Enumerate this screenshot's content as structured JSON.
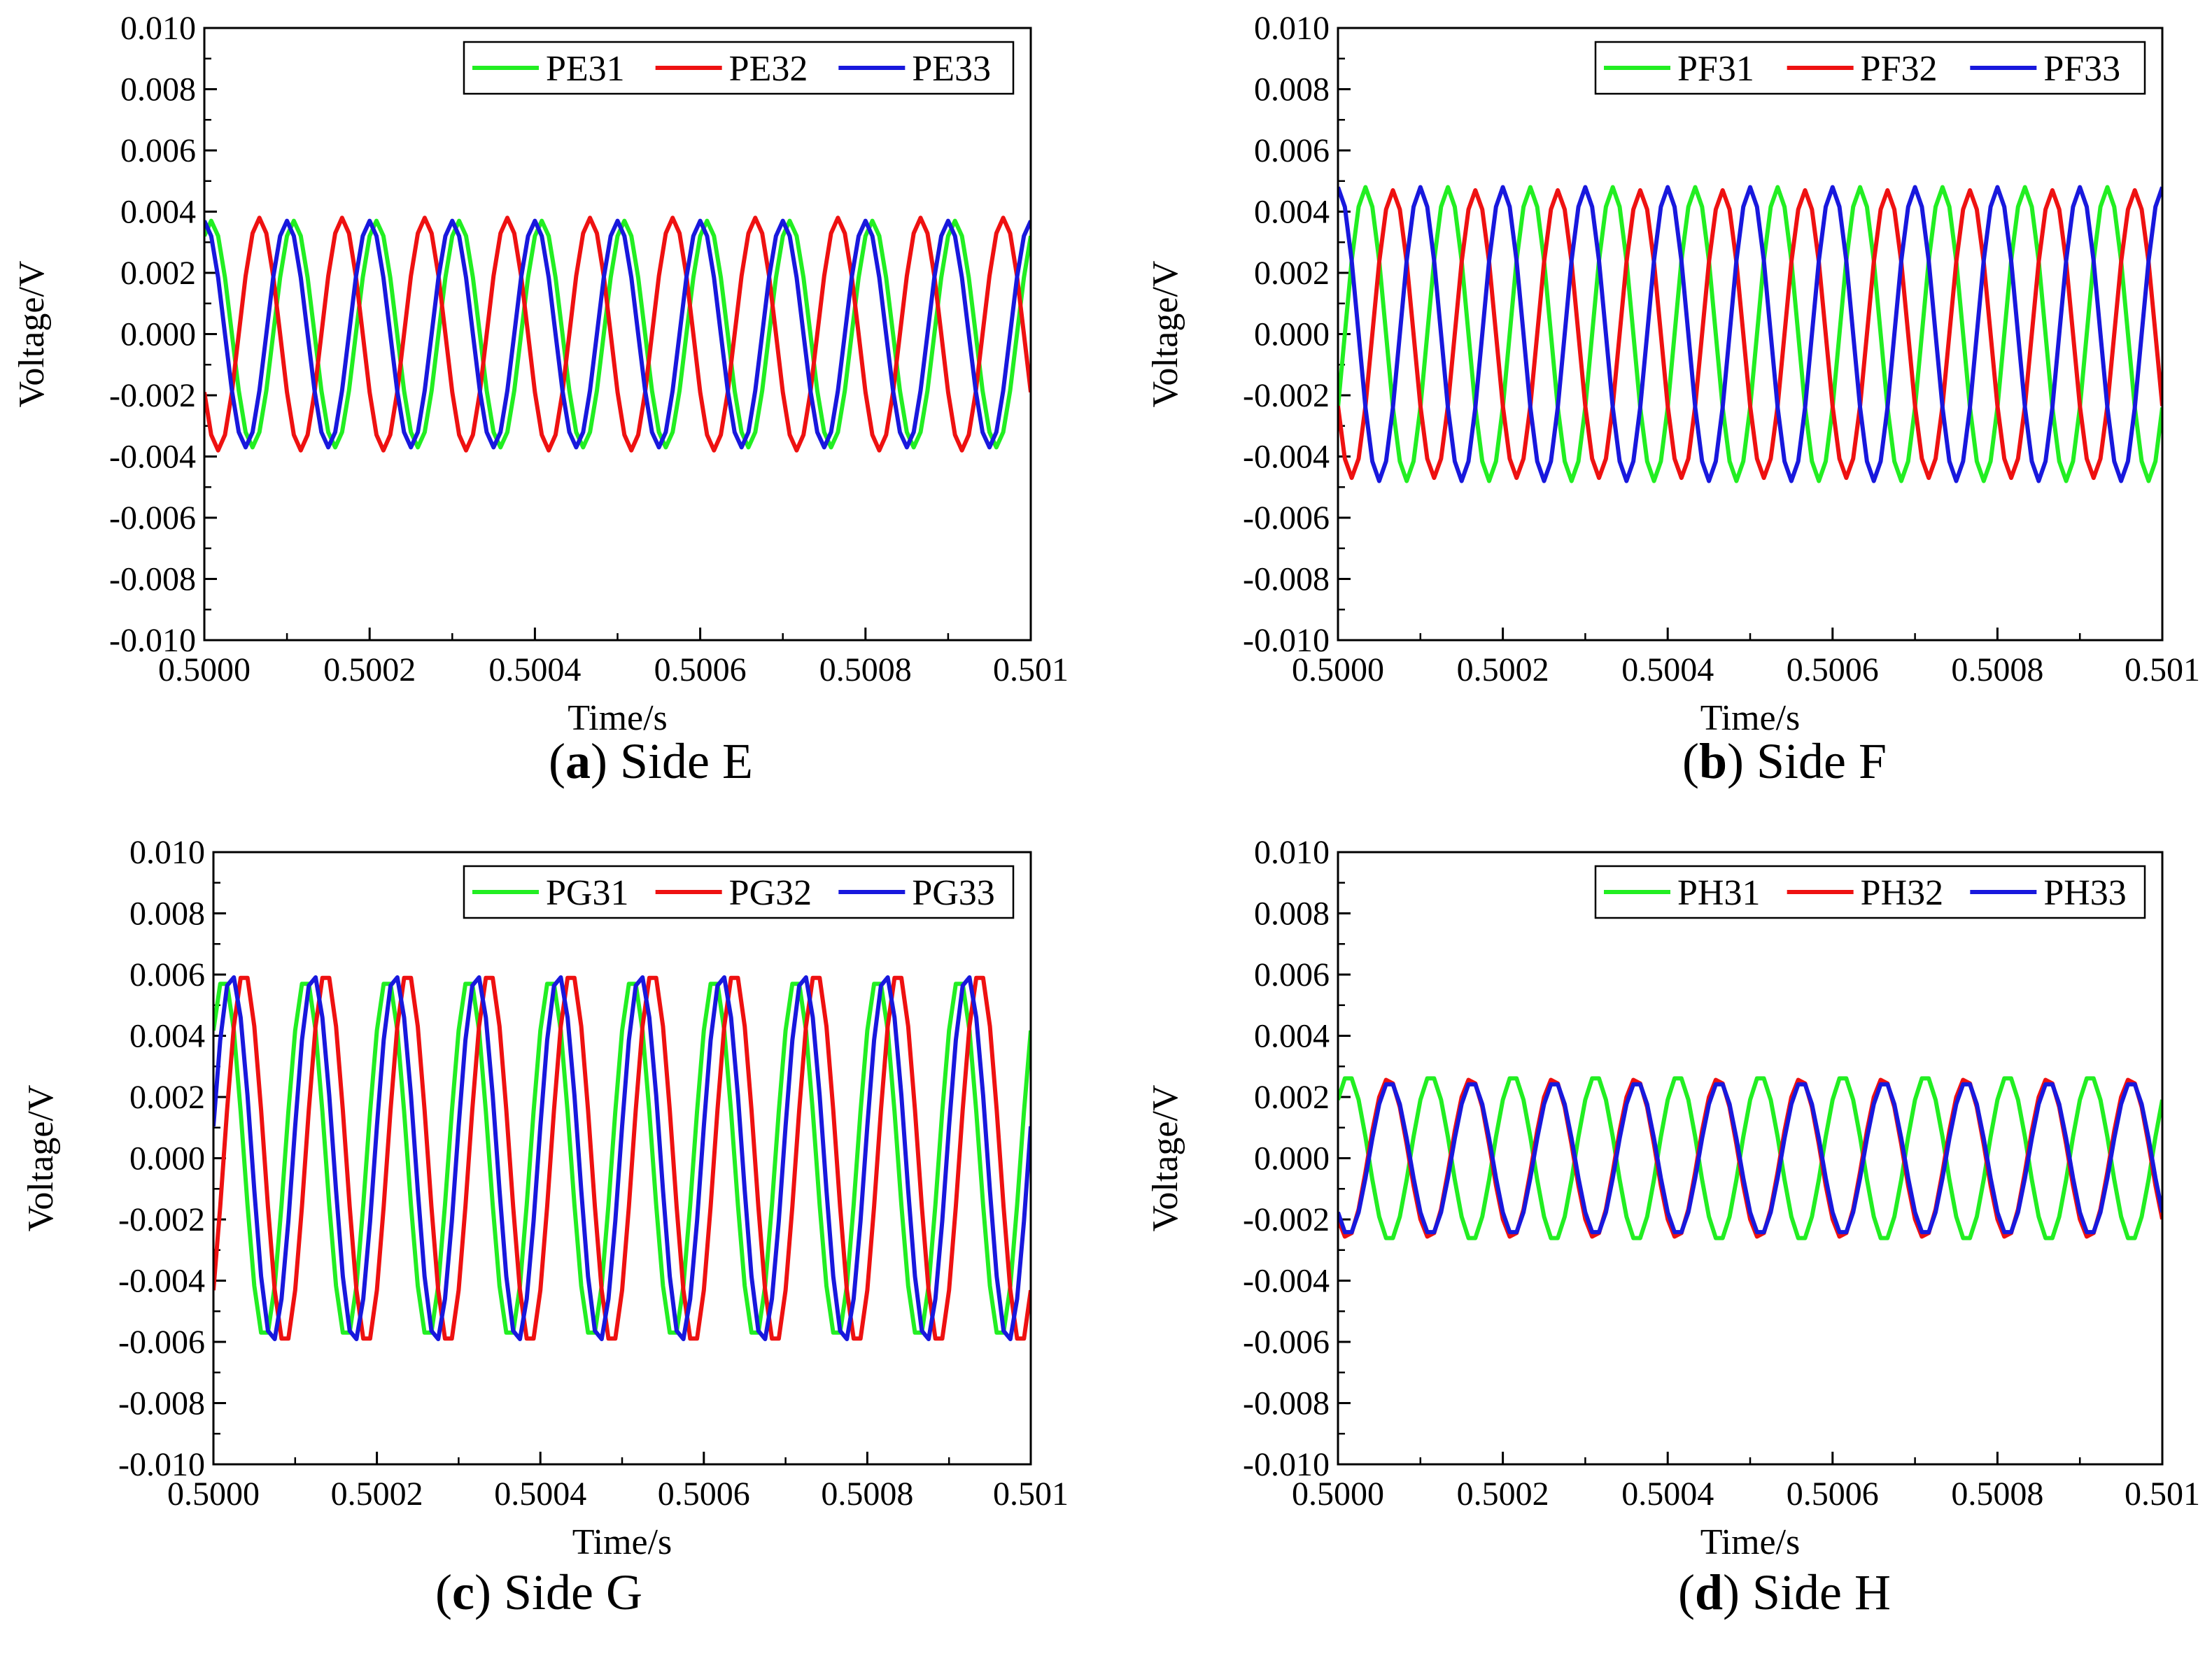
{
  "figure": {
    "colors": {
      "green": "#22ee22",
      "red": "#ee1111",
      "blue": "#1818dd"
    }
  },
  "chart_data": [
    {
      "type": "line",
      "panel_label": "a",
      "caption_text": "Side E",
      "xlabel": "Time/s",
      "ylabel": "Voltage/V",
      "xlim": [
        0.5,
        0.501
      ],
      "ylim": [
        -0.01,
        0.01
      ],
      "x_ticks": [
        "0.5000",
        "0.5002",
        "0.5004",
        "0.5006",
        "0.5008",
        "0.501"
      ],
      "y_ticks": [
        "-0.010",
        "-0.008",
        "-0.006",
        "-0.004",
        "-0.002",
        "0.000",
        "0.002",
        "0.004",
        "0.006",
        "0.008",
        "0.010"
      ],
      "legend_position": "top-right",
      "signal_period_s": 0.0001,
      "series": [
        {
          "name": "PE31",
          "color": "#22ee22",
          "amplitude": 0.0037,
          "phase_deg": 60
        },
        {
          "name": "PE32",
          "color": "#ee1111",
          "amplitude": 0.0038,
          "phase_deg": 210
        },
        {
          "name": "PE33",
          "color": "#1818dd",
          "amplitude": 0.0037,
          "phase_deg": 90
        }
      ]
    },
    {
      "type": "line",
      "panel_label": "b",
      "caption_text": "Side F",
      "xlabel": "Time/s",
      "ylabel": "Voltage/V",
      "xlim": [
        0.5,
        0.501
      ],
      "ylim": [
        -0.01,
        0.01
      ],
      "x_ticks": [
        "0.5000",
        "0.5002",
        "0.5004",
        "0.5006",
        "0.5008",
        "0.501"
      ],
      "y_ticks": [
        "-0.010",
        "-0.008",
        "-0.006",
        "-0.004",
        "-0.002",
        "0.000",
        "0.002",
        "0.004",
        "0.006",
        "0.008",
        "0.010"
      ],
      "legend_position": "top-right",
      "signal_period_s": 0.0001,
      "series": [
        {
          "name": "PF31",
          "color": "#22ee22",
          "amplitude": 0.0048,
          "phase_deg": 330
        },
        {
          "name": "PF32",
          "color": "#ee1111",
          "amplitude": 0.0047,
          "phase_deg": 210
        },
        {
          "name": "PF33",
          "color": "#1818dd",
          "amplitude": 0.0048,
          "phase_deg": 90
        }
      ]
    },
    {
      "type": "line",
      "panel_label": "c",
      "caption_text": "Side G",
      "xlabel": "Time/s",
      "ylabel": "Voltage/V",
      "xlim": [
        0.5,
        0.501
      ],
      "ylim": [
        -0.01,
        0.01
      ],
      "x_ticks": [
        "0.5000",
        "0.5002",
        "0.5004",
        "0.5006",
        "0.5008",
        "0.501"
      ],
      "y_ticks": [
        "-0.010",
        "-0.008",
        "-0.006",
        "-0.004",
        "-0.002",
        "0.000",
        "0.002",
        "0.004",
        "0.006",
        "0.008",
        "0.010"
      ],
      "legend_position": "top-right",
      "signal_period_s": 0.0001,
      "series": [
        {
          "name": "PG31",
          "color": "#22ee22",
          "amplitude": 0.0059,
          "phase_deg": 45
        },
        {
          "name": "PG32",
          "color": "#ee1111",
          "amplitude": 0.0061,
          "phase_deg": 315
        },
        {
          "name": "PG33",
          "color": "#1818dd",
          "amplitude": 0.006,
          "phase_deg": 10
        }
      ]
    },
    {
      "type": "line",
      "panel_label": "d",
      "caption_text": "Side H",
      "xlabel": "Time/s",
      "ylabel": "Voltage/V",
      "xlim": [
        0.5,
        0.501
      ],
      "ylim": [
        -0.01,
        0.01
      ],
      "x_ticks": [
        "0.5000",
        "0.5002",
        "0.5004",
        "0.5006",
        "0.5008",
        "0.501"
      ],
      "y_ticks": [
        "-0.010",
        "-0.008",
        "-0.006",
        "-0.004",
        "-0.002",
        "0.000",
        "0.002",
        "0.004",
        "0.006",
        "0.008",
        "0.010"
      ],
      "legend_position": "top-right",
      "signal_period_s": 0.0001,
      "series": [
        {
          "name": "PH31",
          "color": "#22ee22",
          "amplitude": 0.0027,
          "phase_deg": 45
        },
        {
          "name": "PH32",
          "color": "#ee1111",
          "amplitude": 0.0026,
          "phase_deg": 230
        },
        {
          "name": "PH33",
          "color": "#1818dd",
          "amplitude": 0.0025,
          "phase_deg": 225
        }
      ]
    }
  ]
}
